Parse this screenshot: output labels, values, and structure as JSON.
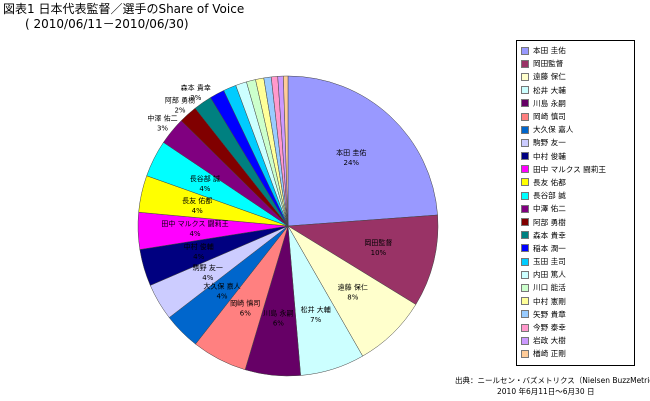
{
  "title": {
    "line1": "図表1 日本代表監督／選手のShare of Voice",
    "line2": "( 2010/06/11－2010/06/30)"
  },
  "source": {
    "line1": "出典：ニールセン・バズメトリクス（Nielsen BuzzMetrics）",
    "line2": "2010 年6月11日～6月30 日"
  },
  "chart_data": {
    "type": "pie",
    "title": "図表1 日本代表監督／選手のShare of Voice",
    "subtitle": "( 2010/06/11－2010/06/30)",
    "legend_position": "right",
    "slices": [
      {
        "name": "本田 圭佑",
        "value": 24,
        "label": "24%",
        "color": "#9999ff"
      },
      {
        "name": "岡田監督",
        "value": 10,
        "label": "10%",
        "color": "#993366"
      },
      {
        "name": "遠藤 保仁",
        "value": 8,
        "label": "8%",
        "color": "#ffffcc"
      },
      {
        "name": "松井 大輔",
        "value": 7,
        "label": "7%",
        "color": "#ccffff"
      },
      {
        "name": "川島 永嗣",
        "value": 6,
        "label": "6%",
        "color": "#660066"
      },
      {
        "name": "岡崎 慎司",
        "value": 6,
        "label": "6%",
        "color": "#ff8080"
      },
      {
        "name": "大久保 嘉人",
        "value": 4,
        "label": "4%",
        "color": "#0066cc"
      },
      {
        "name": "駒野 友一",
        "value": 4,
        "label": "4%",
        "color": "#ccccff"
      },
      {
        "name": "中村 俊輔",
        "value": 4,
        "label": "4%",
        "color": "#000080"
      },
      {
        "name": "田中 マルクス 闘莉王",
        "value": 4,
        "label": "4%",
        "color": "#ff00ff"
      },
      {
        "name": "長友 佑都",
        "value": 4,
        "label": "4%",
        "color": "#ffff00"
      },
      {
        "name": "長谷部 誠",
        "value": 4,
        "label": "4%",
        "color": "#00ffff"
      },
      {
        "name": "中澤 佑二",
        "value": 3,
        "label": "3%",
        "color": "#800080"
      },
      {
        "name": "阿部 勇樹",
        "value": 2,
        "label": "2%",
        "color": "#800000"
      },
      {
        "name": "森本 貴幸",
        "value": 2,
        "label": "2%",
        "color": "#008080"
      },
      {
        "name": "稲本 潤一",
        "value": 1.6,
        "label": "",
        "color": "#0000ff"
      },
      {
        "name": "玉田 圭司",
        "value": 1.4,
        "label": "",
        "color": "#00ccff"
      },
      {
        "name": "内田 篤人",
        "value": 1.2,
        "label": "",
        "color": "#ccffff"
      },
      {
        "name": "川口 能活",
        "value": 1.0,
        "label": "",
        "color": "#ccffcc"
      },
      {
        "name": "中村 憲剛",
        "value": 0.9,
        "label": "",
        "color": "#ffff99"
      },
      {
        "name": "矢野 貴章",
        "value": 0.8,
        "label": "",
        "color": "#99ccff"
      },
      {
        "name": "今野 泰幸",
        "value": 0.7,
        "label": "",
        "color": "#ff99cc"
      },
      {
        "name": "岩政 大樹",
        "value": 0.6,
        "label": "",
        "color": "#cc99ff"
      },
      {
        "name": "楢崎 正剛",
        "value": 0.5,
        "label": "",
        "color": "#ffcc99"
      }
    ]
  }
}
